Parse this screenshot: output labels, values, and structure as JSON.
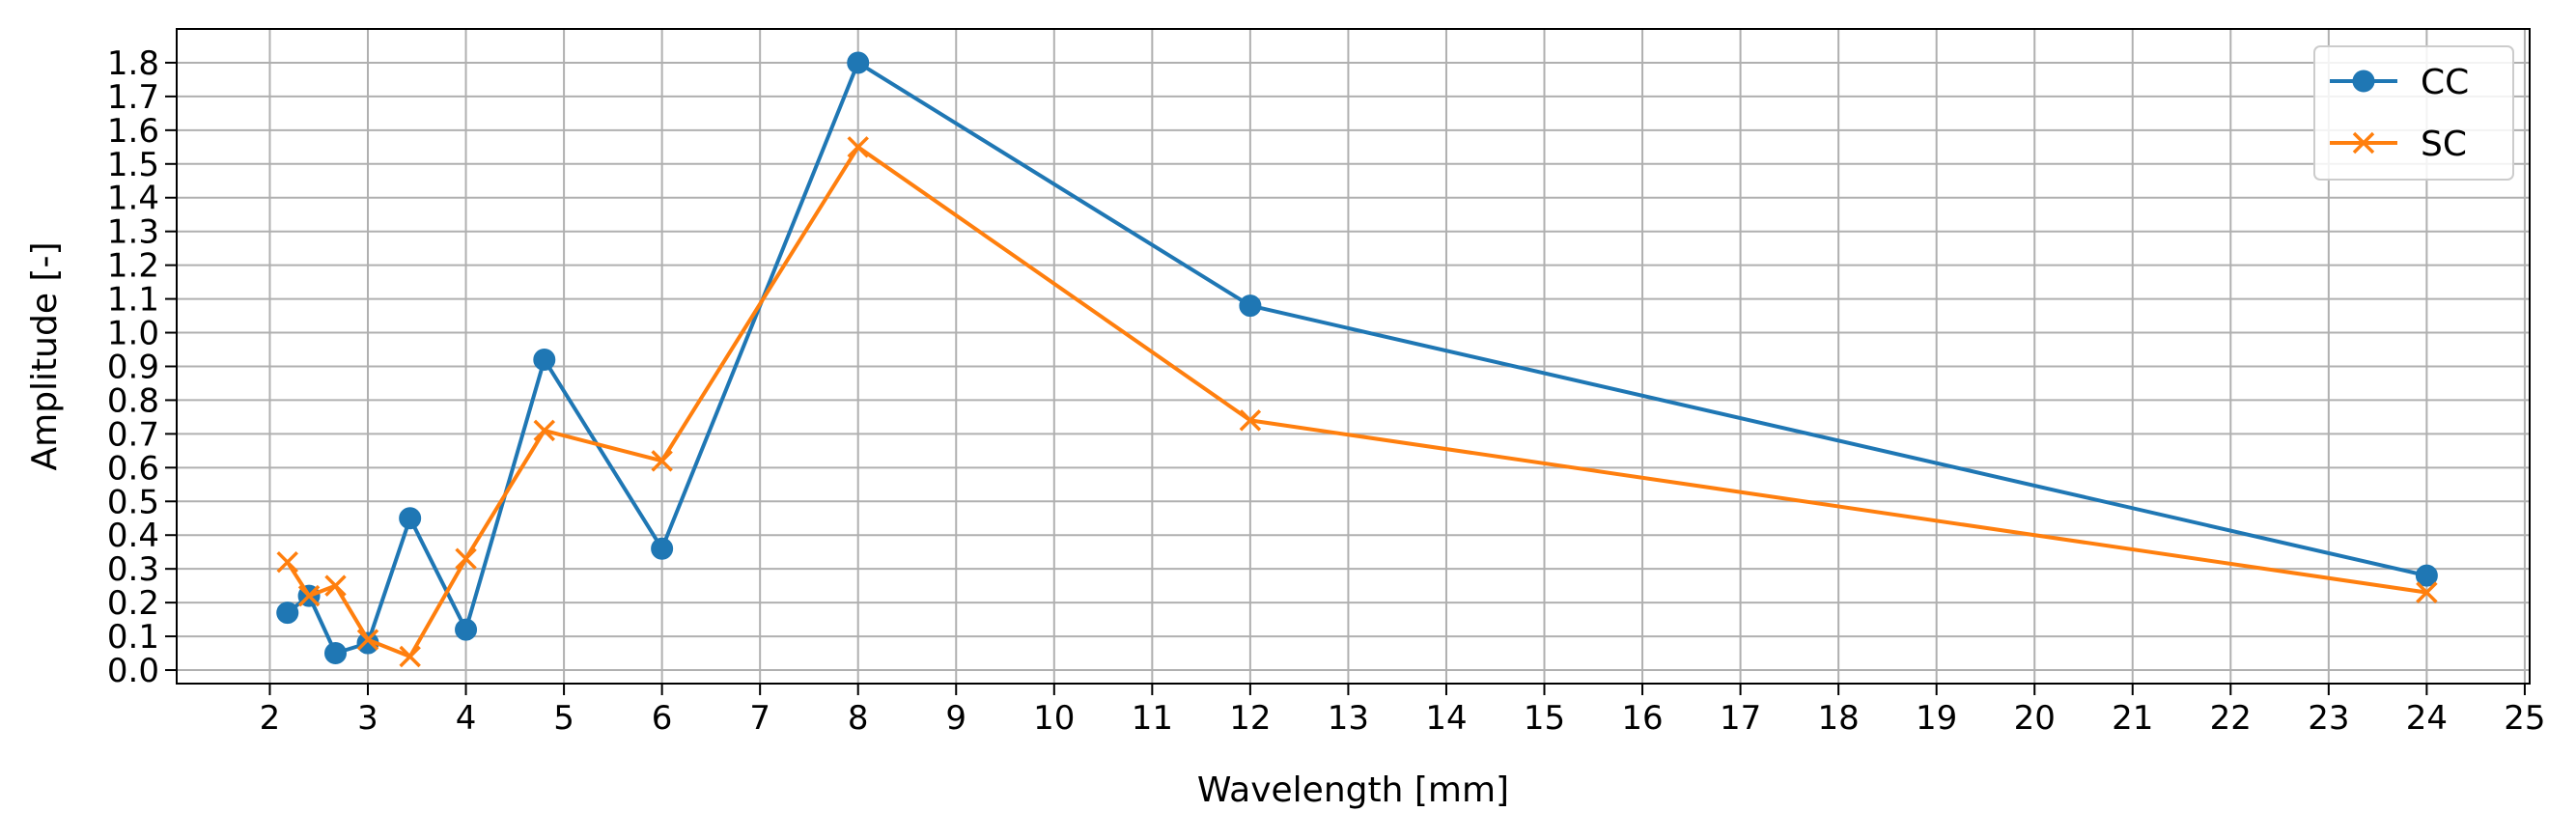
{
  "chart_data": {
    "type": "line",
    "xlabel": "Wavelength [mm]",
    "ylabel": "Amplitude [-]",
    "xlim": [
      1.05,
      25.05
    ],
    "ylim": [
      -0.04,
      1.9
    ],
    "xticks": [
      2,
      3,
      4,
      5,
      6,
      7,
      8,
      9,
      10,
      11,
      12,
      13,
      14,
      15,
      16,
      17,
      18,
      19,
      20,
      21,
      22,
      23,
      24,
      25
    ],
    "yticks": [
      0.0,
      0.1,
      0.2,
      0.3,
      0.4,
      0.5,
      0.6,
      0.7,
      0.8,
      0.9,
      1.0,
      1.1,
      1.2,
      1.3,
      1.4,
      1.5,
      1.6,
      1.7,
      1.8
    ],
    "grid": true,
    "legend_position": "top-right",
    "series": [
      {
        "name": "CC",
        "color": "#1f77b4",
        "marker": "circle",
        "x": [
          2.18,
          2.4,
          2.67,
          3.0,
          3.43,
          4.0,
          4.8,
          6.0,
          8.0,
          12.0,
          24.0
        ],
        "y": [
          0.17,
          0.22,
          0.05,
          0.08,
          0.45,
          0.12,
          0.92,
          0.36,
          1.8,
          1.08,
          0.28
        ]
      },
      {
        "name": "SC",
        "color": "#ff7f0e",
        "marker": "x",
        "x": [
          2.18,
          2.4,
          2.67,
          3.0,
          3.43,
          4.0,
          4.8,
          6.0,
          8.0,
          12.0,
          24.0
        ],
        "y": [
          0.32,
          0.22,
          0.25,
          0.09,
          0.04,
          0.33,
          0.71,
          0.62,
          1.55,
          0.74,
          0.23
        ]
      }
    ]
  }
}
